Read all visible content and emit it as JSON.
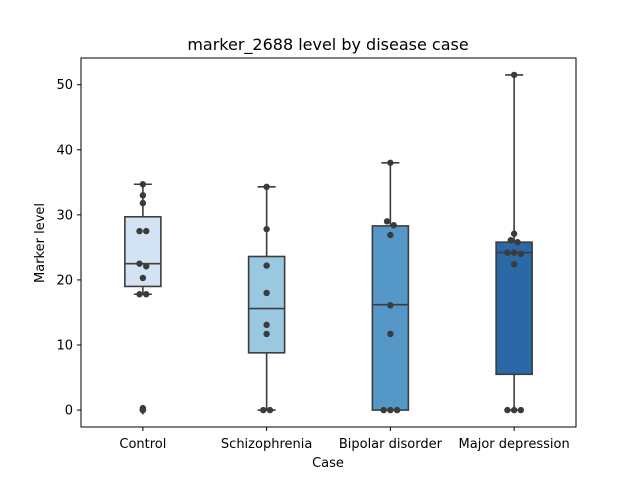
{
  "chart_data": {
    "type": "box",
    "title": "marker_2688 level by disease case",
    "xlabel": "Case",
    "ylabel": "Marker level",
    "ylim": [
      -2.6,
      54.1
    ],
    "yticks": [
      0,
      10,
      20,
      30,
      40,
      50
    ],
    "grid": false,
    "legend": "none",
    "categories": [
      "Control",
      "Schizophrenia",
      "Bipolar disorder",
      "Major depression"
    ],
    "colors": [
      "#d3e3f3",
      "#9ac8e0",
      "#5597c6",
      "#2a68a7"
    ],
    "point_color": "#3b3b3b",
    "line_color": "#3d3d3d",
    "boxes": [
      {
        "q1": 19.0,
        "median": 22.5,
        "q3": 29.7,
        "whisker_low": 17.8,
        "whisker_high": 34.7,
        "fliers": [
          0.0
        ]
      },
      {
        "q1": 8.8,
        "median": 15.6,
        "q3": 23.6,
        "whisker_low": 0.0,
        "whisker_high": 34.3,
        "fliers": []
      },
      {
        "q1": 0.0,
        "median": 16.2,
        "q3": 28.3,
        "whisker_low": 0.0,
        "whisker_high": 38.0,
        "fliers": []
      },
      {
        "q1": 5.5,
        "median": 24.2,
        "q3": 25.8,
        "whisker_low": 0.0,
        "whisker_high": 51.5,
        "fliers": []
      }
    ],
    "points": [
      [
        {
          "y": 34.7,
          "dx": 0
        },
        {
          "y": 33.0,
          "dx": 0
        },
        {
          "y": 31.8,
          "dx": 0
        },
        {
          "y": 27.5,
          "dx": -0.5
        },
        {
          "y": 27.5,
          "dx": 0.5
        },
        {
          "y": 22.5,
          "dx": -0.5
        },
        {
          "y": 22.1,
          "dx": 0.5
        },
        {
          "y": 20.3,
          "dx": 0
        },
        {
          "y": 17.8,
          "dx": -0.5
        },
        {
          "y": 17.8,
          "dx": 0.5
        },
        {
          "y": 0.0,
          "dx": 0
        },
        {
          "y": 0.3,
          "dx": 0
        }
      ],
      [
        {
          "y": 34.3,
          "dx": 0
        },
        {
          "y": 27.8,
          "dx": 0
        },
        {
          "y": 22.2,
          "dx": 0
        },
        {
          "y": 18.0,
          "dx": 0
        },
        {
          "y": 13.1,
          "dx": 0
        },
        {
          "y": 11.7,
          "dx": 0
        },
        {
          "y": 0.0,
          "dx": -0.5
        },
        {
          "y": 0.0,
          "dx": 0.5
        }
      ],
      [
        {
          "y": 38.0,
          "dx": 0
        },
        {
          "y": 29.0,
          "dx": -0.5
        },
        {
          "y": 28.4,
          "dx": 0.5
        },
        {
          "y": 26.9,
          "dx": 0
        },
        {
          "y": 16.1,
          "dx": 0
        },
        {
          "y": 11.7,
          "dx": 0
        },
        {
          "y": 0.0,
          "dx": -1
        },
        {
          "y": 0.0,
          "dx": 0
        },
        {
          "y": 0.0,
          "dx": 1
        }
      ],
      [
        {
          "y": 51.5,
          "dx": 0
        },
        {
          "y": 27.1,
          "dx": 0
        },
        {
          "y": 26.1,
          "dx": -0.5
        },
        {
          "y": 25.8,
          "dx": 0.5
        },
        {
          "y": 24.2,
          "dx": -1
        },
        {
          "y": 24.2,
          "dx": 0
        },
        {
          "y": 24.0,
          "dx": 1
        },
        {
          "y": 22.4,
          "dx": 0
        },
        {
          "y": 0.0,
          "dx": -1
        },
        {
          "y": 0.0,
          "dx": 0
        },
        {
          "y": 0.0,
          "dx": 1
        }
      ]
    ]
  }
}
